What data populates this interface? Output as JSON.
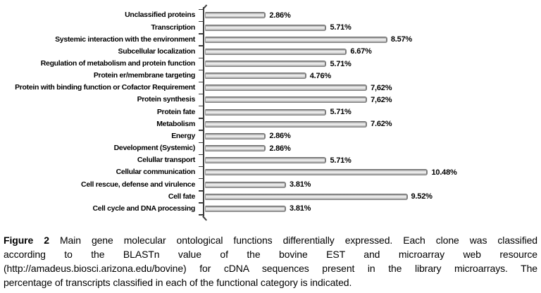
{
  "chart_data": {
    "type": "bar",
    "orientation": "horizontal",
    "categories": [
      "Unclassified proteins",
      "Transcription",
      "Systemic interaction with the environment",
      "Subcellular localization",
      "Regulation of metabolism and protein function",
      "Protein er/membrane targeting",
      "Protein with binding function or Cofactor Requirement",
      "Protein synthesis",
      "Protein fate",
      "Metabolism",
      "Energy",
      "Development (Systemic)",
      "Celullar transport",
      "Cellular communication",
      "Cell rescue, defense and virulence",
      "Cell fate",
      "Cell cycle and DNA processing"
    ],
    "values": [
      2.86,
      5.71,
      8.57,
      6.67,
      5.71,
      4.76,
      7.62,
      7.62,
      5.71,
      7.62,
      2.86,
      2.86,
      5.71,
      10.48,
      3.81,
      9.52,
      3.81
    ],
    "value_labels": [
      "2.86%",
      "5.71%",
      "8.57%",
      "6.67%",
      "5.71%",
      "4.76%",
      "7,62%",
      "7,62%",
      "5.71%",
      "7.62%",
      "2.86%",
      "2.86%",
      "5.71%",
      "10.48%",
      "3.81%",
      "9.52%",
      "3.81%"
    ],
    "xlim": [
      0,
      10.9
    ],
    "grid": false,
    "legend": false,
    "bar_color": "#c8c8c8",
    "bar_edge_color": "#6e6e6e",
    "axis_color": "#3c3c3c",
    "background_color": "#ffffff"
  },
  "caption": {
    "label": "Figure 2",
    "lines": [
      "Main gene molecular ontological functions differentially expressed. Each clone was classified",
      "according to the BLASTn value of the bovine EST and microarray web resource",
      "(http://amadeus.biosci.arizona.edu/bovine) for cDNA sequences present in the library microarrays. The",
      "percentage of transcripts classified in each of the functional category is indicated."
    ]
  }
}
